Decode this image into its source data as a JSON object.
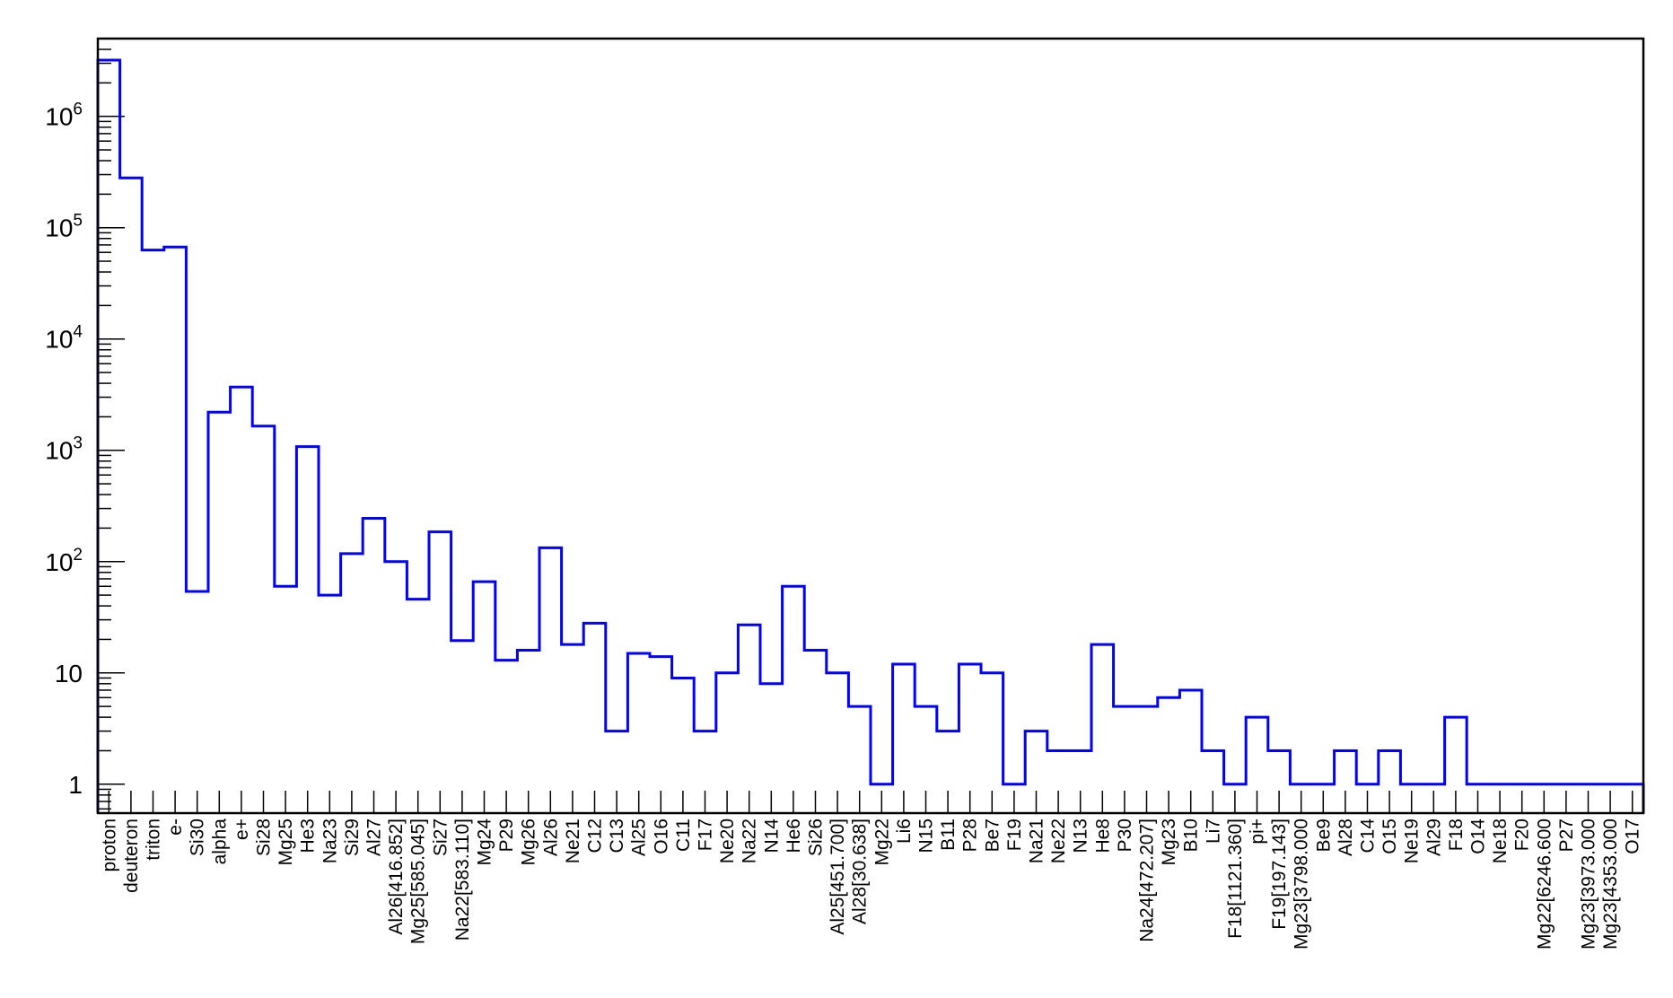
{
  "chart_data": {
    "type": "bar",
    "style": "step-histogram",
    "log_y": true,
    "ylim": [
      0.55,
      5000000
    ],
    "grid": false,
    "line_color": "#0000ff",
    "frame_color": "#000000",
    "title": "",
    "xlabel": "",
    "ylabel": "",
    "categories": [
      "proton",
      "deuteron",
      "triton",
      "e-",
      "Si30",
      "alpha",
      "e+",
      "Si28",
      "Mg25",
      "He3",
      "Na23",
      "Si29",
      "Al27",
      "Al26[416.852]",
      "Mg25[585.045]",
      "Si27",
      "Na22[583.110]",
      "Mg24",
      "P29",
      "Mg26",
      "Al26",
      "Ne21",
      "C12",
      "C13",
      "Al25",
      "O16",
      "C11",
      "F17",
      "Ne20",
      "Na22",
      "N14",
      "He6",
      "Si26",
      "Al25[451.700]",
      "Al28[30.638]",
      "Mg22",
      "Li6",
      "N15",
      "B11",
      "P28",
      "Be7",
      "F19",
      "Na21",
      "Ne22",
      "N13",
      "He8",
      "P30",
      "Na24[472.207]",
      "Mg23",
      "B10",
      "Li7",
      "F18[1121.360]",
      "pi+",
      "F19[197.143]",
      "Mg23[3798.000",
      "Be9",
      "Al28",
      "C14",
      "O15",
      "Ne19",
      "Al29",
      "F18",
      "O14",
      "Ne18",
      "F20",
      "Mg22[6246.600",
      "P27",
      "Mg23[3973.000",
      "Mg23[4353.000",
      "O17"
    ],
    "labeled_indices": [
      0,
      1,
      2,
      3,
      4,
      5,
      6,
      7,
      8,
      9,
      10,
      11,
      12,
      13,
      14,
      15,
      16,
      17,
      18,
      19,
      20,
      21,
      22,
      23,
      24,
      25,
      26,
      27,
      28,
      29,
      30,
      31,
      32,
      33,
      34,
      35,
      36,
      37,
      38,
      39,
      40,
      41,
      42,
      43,
      44,
      45,
      46,
      47,
      48,
      49,
      50,
      51,
      52,
      53,
      54,
      55,
      56,
      57,
      58,
      59,
      60,
      61,
      62,
      63,
      64,
      65,
      66,
      67,
      68,
      69
    ],
    "values": [
      3200000,
      280000,
      63000,
      67000,
      54,
      2200,
      3700,
      1650,
      60,
      1080,
      50,
      118,
      245,
      100,
      46,
      185,
      19.5,
      66,
      13,
      16,
      133,
      18,
      28,
      3,
      15,
      14,
      9,
      3,
      10,
      27,
      8,
      60,
      16,
      10,
      5,
      1,
      12,
      5,
      3,
      12,
      10,
      1,
      3,
      2,
      2,
      18,
      5,
      5,
      6,
      7,
      2,
      1,
      4,
      2,
      1,
      1,
      2,
      1,
      2,
      1,
      1,
      4,
      1,
      1,
      1,
      1,
      1,
      1,
      1,
      1
    ],
    "y_tick_labels": [
      {
        "value": 1,
        "base": "1",
        "sup": ""
      },
      {
        "value": 10,
        "base": "10",
        "sup": ""
      },
      {
        "value": 100,
        "base": "10",
        "sup": "2"
      },
      {
        "value": 1000,
        "base": "10",
        "sup": "3"
      },
      {
        "value": 10000,
        "base": "10",
        "sup": "4"
      },
      {
        "value": 100000,
        "base": "10",
        "sup": "5"
      },
      {
        "value": 1000000,
        "base": "10",
        "sup": "6"
      }
    ]
  }
}
